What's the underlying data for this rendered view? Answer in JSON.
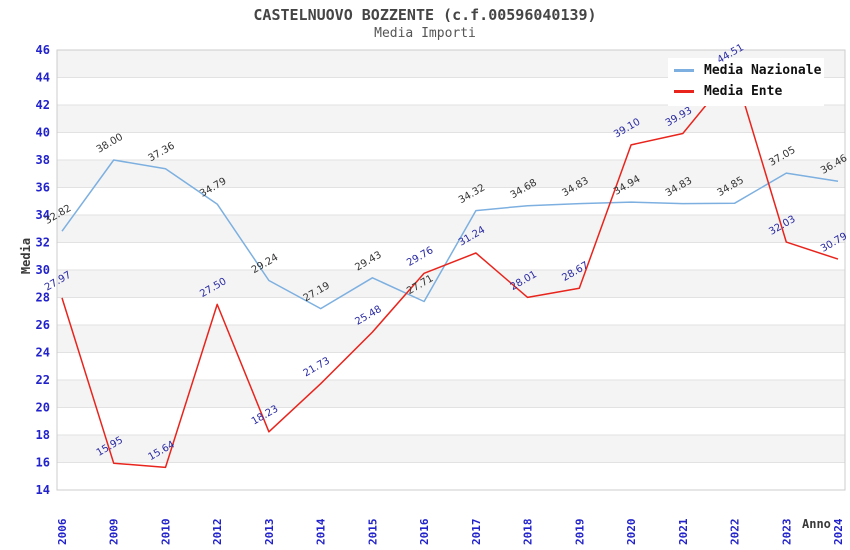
{
  "chart_data": {
    "type": "line",
    "title": "CASTELNUOVO BOZZENTE (c.f.00596040139)",
    "subtitle": "Media Importi",
    "xlabel": "Anno",
    "ylabel": "Media",
    "ylim": [
      14,
      46
    ],
    "ytick_step": 2,
    "grid": true,
    "legend_position": "top-right",
    "band_colors": [
      "#ffffff",
      "#f4f4f4"
    ],
    "grid_color": "#e2e2e2",
    "frame_color": "#cccccc",
    "tick_label_color": "#2222cc",
    "categories": [
      "2006",
      "2009",
      "2010",
      "2012",
      "2013",
      "2014",
      "2015",
      "2016",
      "2017",
      "2018",
      "2019",
      "2020",
      "2021",
      "2022",
      "2023",
      "2024"
    ],
    "series": [
      {
        "name": "Media Nazionale",
        "color": "#7db0e0",
        "label_color": "#333333",
        "values": [
          32.82,
          38.0,
          37.36,
          34.79,
          29.24,
          27.19,
          29.43,
          27.71,
          34.32,
          34.68,
          34.83,
          34.94,
          34.83,
          34.85,
          37.05,
          36.46
        ]
      },
      {
        "name": "Media Ente",
        "color": "#e8241c",
        "label_color": "#2929a3",
        "values": [
          27.97,
          15.95,
          15.64,
          27.5,
          18.23,
          21.73,
          25.48,
          29.76,
          31.24,
          28.01,
          28.67,
          39.1,
          39.93,
          44.51,
          32.03,
          30.79
        ]
      }
    ]
  }
}
